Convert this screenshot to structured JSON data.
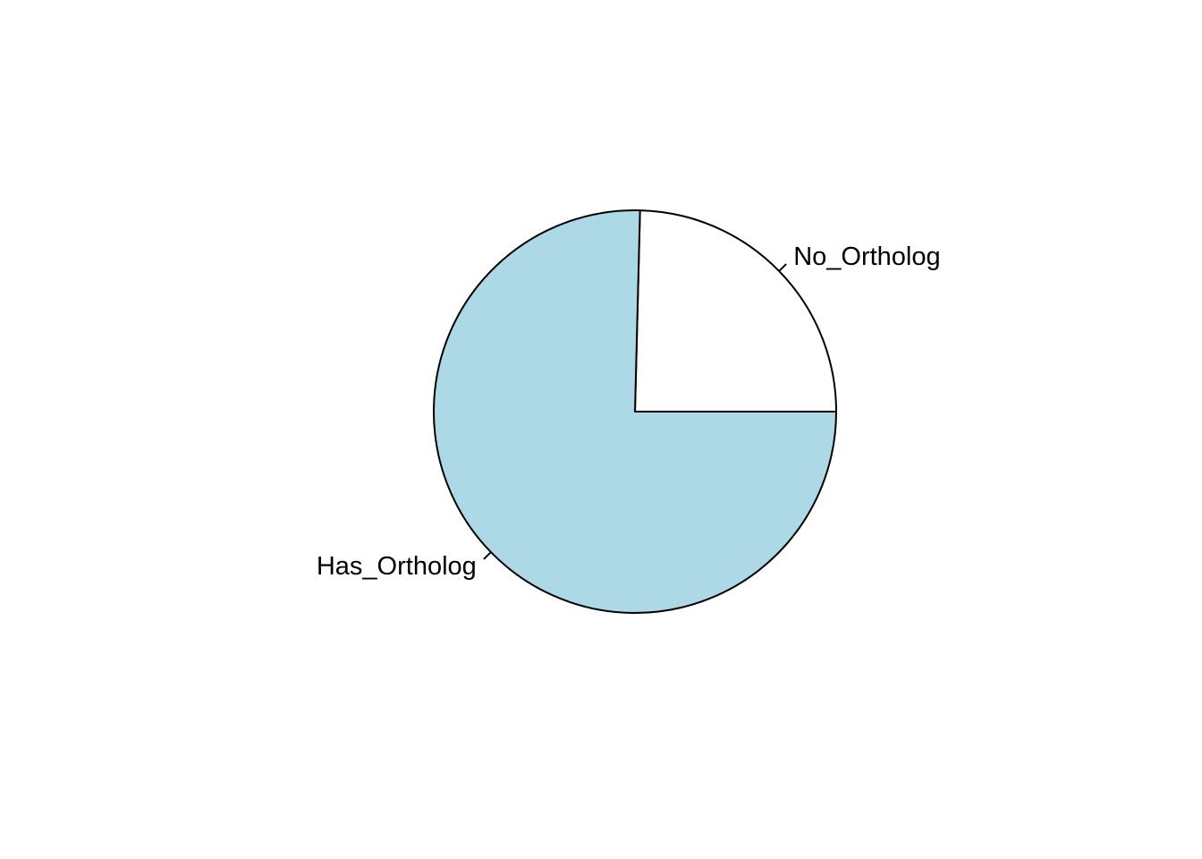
{
  "chart_data": {
    "type": "pie",
    "title": "",
    "labels": [
      "No_Ortholog",
      "Has_Ortholog"
    ],
    "values": [
      24.6,
      75.4
    ],
    "colors": [
      "#ffffff",
      "#add8e6"
    ],
    "start_angle_deg": 0,
    "direction": "counterclockwise",
    "border_color": "#000000"
  }
}
